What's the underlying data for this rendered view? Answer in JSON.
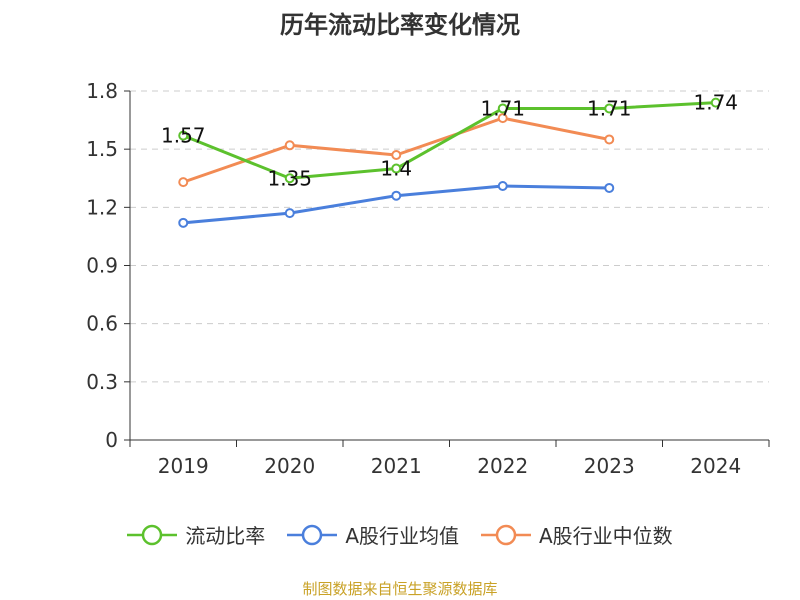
{
  "title": "历年流动比率变化情况",
  "source": "制图数据来自恒生聚源数据库",
  "chart_data": {
    "type": "line",
    "categories": [
      "2019",
      "2020",
      "2021",
      "2022",
      "2023",
      "2024"
    ],
    "ylim": [
      0,
      1.8
    ],
    "yticks": [
      "0",
      "0.3",
      "0.6",
      "0.9",
      "1.2",
      "1.5",
      "1.8"
    ],
    "grid": true,
    "legend_position": "bottom",
    "series": [
      {
        "name": "流动比率",
        "color": "#5cc12d",
        "values": [
          1.57,
          1.35,
          1.4,
          1.71,
          1.71,
          1.74
        ],
        "labels": [
          "1.57",
          "1.35",
          "1.4",
          "1.71",
          "1.71",
          "1.74"
        ]
      },
      {
        "name": "A股行业均值",
        "color": "#4a7fdc",
        "values": [
          1.12,
          1.17,
          1.26,
          1.31,
          1.3,
          null
        ]
      },
      {
        "name": "A股行业中位数",
        "color": "#f28b54",
        "values": [
          1.33,
          1.52,
          1.47,
          1.66,
          1.55,
          null
        ]
      }
    ]
  }
}
